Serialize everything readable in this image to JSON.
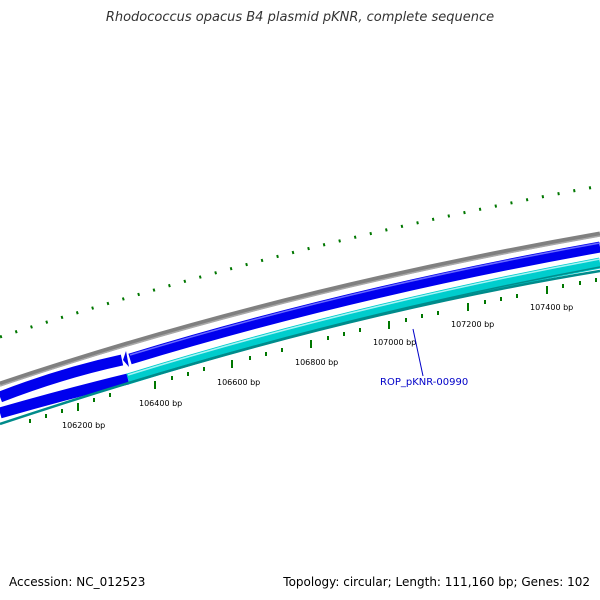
{
  "title": "Rhodococcus opacus B4 plasmid pKNR, complete sequence",
  "footer": {
    "accession": "Accession: NC_012523",
    "summary": "Topology: circular; Length: 111,160 bp; Genes: 102"
  },
  "ticks": [
    "106200 bp",
    "106400 bp",
    "106600 bp",
    "106800 bp",
    "107000 bp",
    "107200 bp",
    "107400 bp"
  ],
  "gene_label": "ROP_pKNR-00990",
  "colors": {
    "backbone": "#808080",
    "forward_gene": "#0000ee",
    "reverse_gene": "#00cdcd",
    "tick": "#007700",
    "gene_label": "#0000c8"
  }
}
